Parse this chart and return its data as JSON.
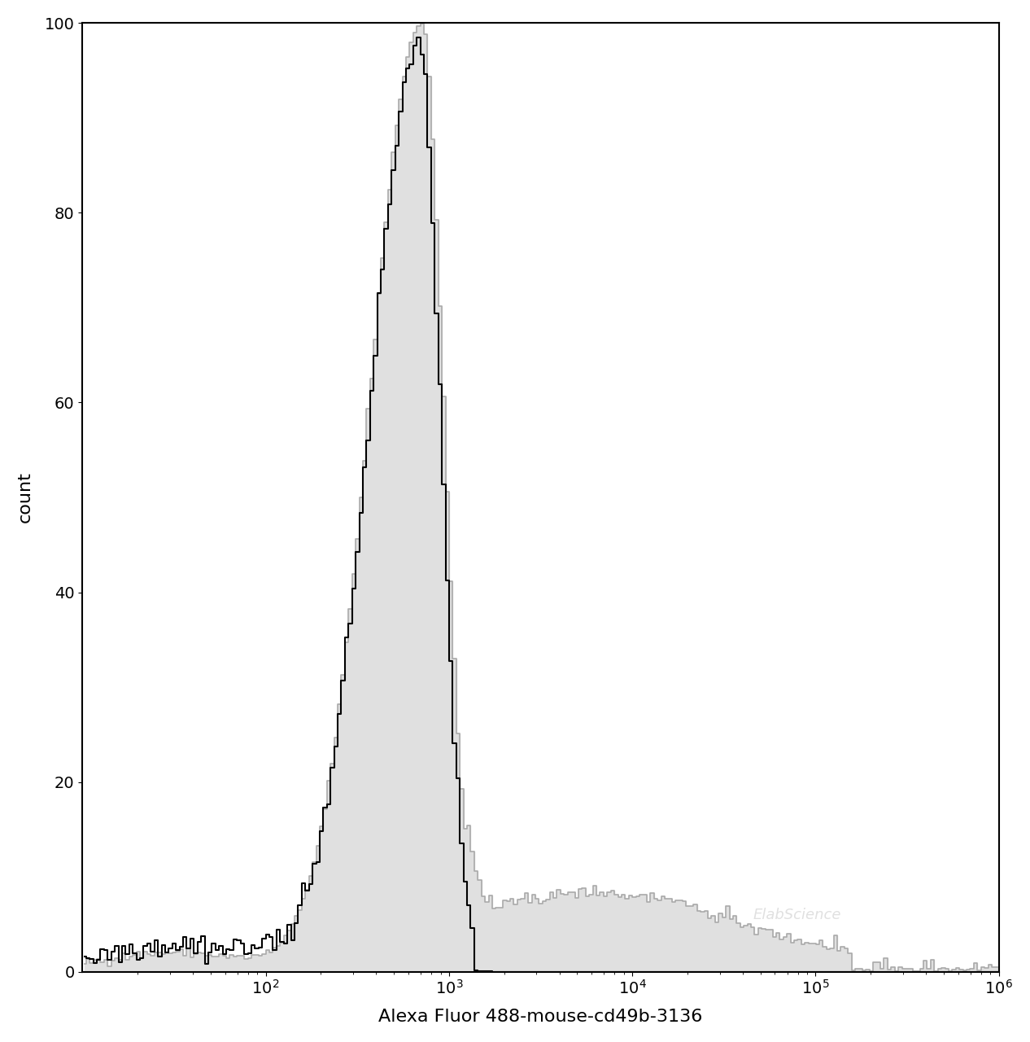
{
  "xlabel": "Alexa Fluor 488-mouse-cd49b-3136",
  "ylabel": "count",
  "xlim_log": [
    10,
    1000000
  ],
  "ylim": [
    0,
    100
  ],
  "yticks": [
    0,
    20,
    40,
    60,
    80,
    100
  ],
  "xticks_log": [
    100,
    1000,
    10000,
    100000,
    1000000
  ],
  "background_color": "#ffffff",
  "filled_color": "#e0e0e0",
  "filled_edge_color": "#aaaaaa",
  "blank_color": "#000000",
  "watermark": "ElabScience",
  "seed": 42
}
